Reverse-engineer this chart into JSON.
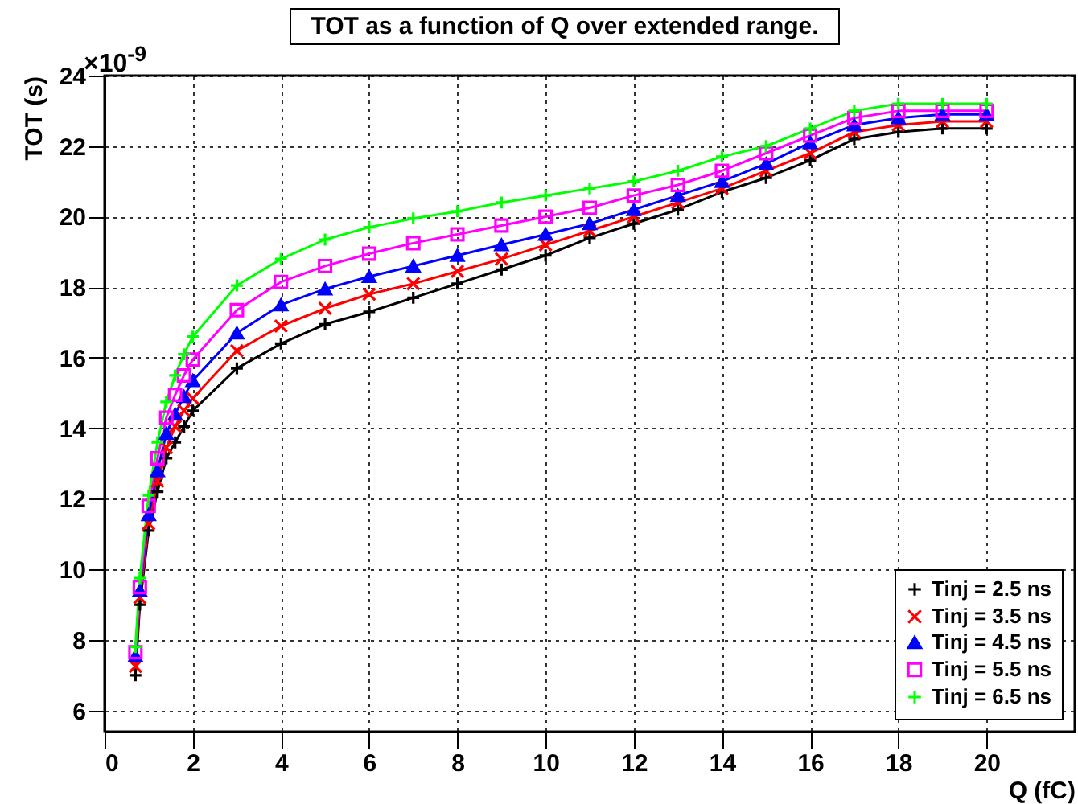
{
  "chart_data": {
    "type": "line",
    "title": "TOT as a function of Q over extended range.",
    "xlabel": "Q (fC)",
    "ylabel": "TOT (s)",
    "annotations": [
      "×10$^{-9}$"
    ],
    "x": [
      0.7,
      0.8,
      1.0,
      1.2,
      1.4,
      1.6,
      1.8,
      2,
      3,
      4,
      5,
      6,
      7,
      8,
      9,
      10,
      11,
      12,
      13,
      14,
      15,
      16,
      17,
      18,
      19,
      20
    ],
    "series": [
      {
        "name": "Tinj = 2.5 ns",
        "color": "#000000",
        "marker": "cross",
        "values": [
          7.0,
          9.0,
          11.1,
          12.2,
          13.15,
          13.6,
          14.05,
          14.5,
          15.7,
          16.4,
          16.95,
          17.3,
          17.7,
          18.1,
          18.5,
          18.9,
          19.4,
          19.8,
          20.2,
          20.7,
          21.1,
          21.6,
          22.2,
          22.4,
          22.5,
          22.5
        ]
      },
      {
        "name": "Tinj = 3.5 ns",
        "color": "#ff0000",
        "marker": "cross",
        "values": [
          7.25,
          9.2,
          11.3,
          12.5,
          13.45,
          14.05,
          14.5,
          14.85,
          16.2,
          16.9,
          17.4,
          17.8,
          18.1,
          18.45,
          18.8,
          19.2,
          19.6,
          20.0,
          20.4,
          20.8,
          21.3,
          21.8,
          22.4,
          22.6,
          22.7,
          22.7
        ]
      },
      {
        "name": "Tinj = 4.5 ns",
        "color": "#0000ff",
        "marker": "triangle",
        "values": [
          7.55,
          9.4,
          11.55,
          12.8,
          13.85,
          14.4,
          14.9,
          15.35,
          16.7,
          17.5,
          17.95,
          18.3,
          18.6,
          18.9,
          19.2,
          19.5,
          19.8,
          20.2,
          20.6,
          21.0,
          21.5,
          22.1,
          22.6,
          22.8,
          22.9,
          22.9
        ]
      },
      {
        "name": "Tinj = 5.5 ns",
        "color": "#ff00ff",
        "marker": "square",
        "values": [
          7.65,
          9.5,
          11.8,
          13.15,
          14.3,
          14.95,
          15.5,
          15.95,
          17.35,
          18.15,
          18.6,
          18.95,
          19.25,
          19.5,
          19.75,
          20.0,
          20.25,
          20.6,
          20.9,
          21.3,
          21.8,
          22.3,
          22.8,
          23.0,
          23.0,
          23.0
        ]
      },
      {
        "name": "Tinj = 6.5 ns",
        "color": "#00ff00",
        "marker": "cross",
        "values": [
          7.8,
          9.75,
          12.1,
          13.6,
          14.75,
          15.5,
          16.1,
          16.6,
          18.05,
          18.8,
          19.35,
          19.7,
          19.95,
          20.15,
          20.4,
          20.6,
          20.8,
          21.0,
          21.3,
          21.7,
          22.0,
          22.5,
          23.0,
          23.2,
          23.2,
          23.2
        ]
      }
    ],
    "xlim": [
      0,
      22
    ],
    "xticks": [
      0,
      2,
      4,
      6,
      8,
      10,
      12,
      14,
      16,
      18,
      20
    ],
    "ylim": [
      5.4,
      24
    ],
    "yticks": [
      6,
      8,
      10,
      12,
      14,
      16,
      18,
      20,
      22,
      24
    ],
    "grid": true,
    "legend": "bottom right",
    "line_style": "solid"
  }
}
